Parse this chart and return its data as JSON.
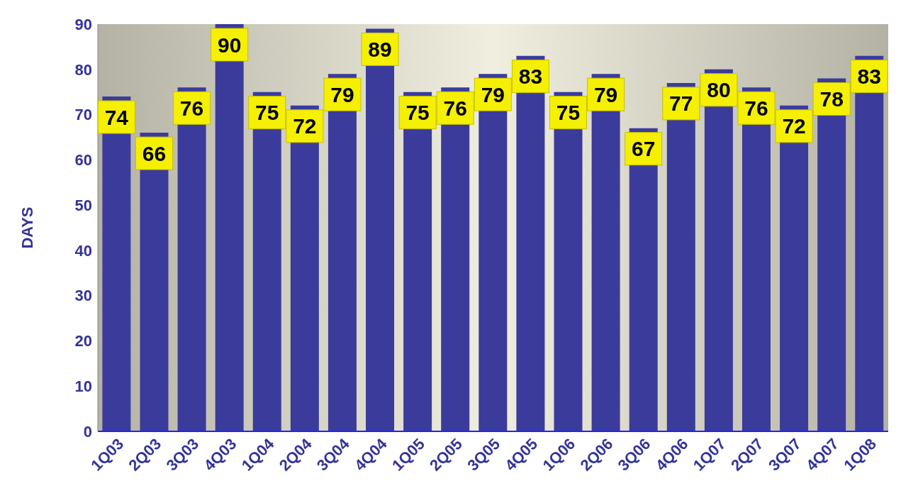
{
  "chart_data": {
    "type": "bar",
    "ylabel": "DAYS",
    "categories": [
      "1Q03",
      "2Q03",
      "3Q03",
      "4Q03",
      "1Q04",
      "2Q04",
      "3Q04",
      "4Q04",
      "1Q05",
      "2Q05",
      "3Q05",
      "4Q05",
      "1Q06",
      "2Q06",
      "3Q06",
      "4Q06",
      "1Q07",
      "2Q07",
      "3Q07",
      "4Q07",
      "1Q08"
    ],
    "values": [
      74,
      66,
      76,
      90,
      75,
      72,
      79,
      89,
      75,
      76,
      79,
      83,
      75,
      79,
      67,
      77,
      80,
      76,
      72,
      78,
      83
    ],
    "color": "#3b3b9c",
    "ylim": [
      0,
      90
    ],
    "yticks": [
      0,
      10,
      20,
      30,
      40,
      50,
      60,
      70,
      80,
      90
    ],
    "grid": false,
    "data_labels": true
  }
}
